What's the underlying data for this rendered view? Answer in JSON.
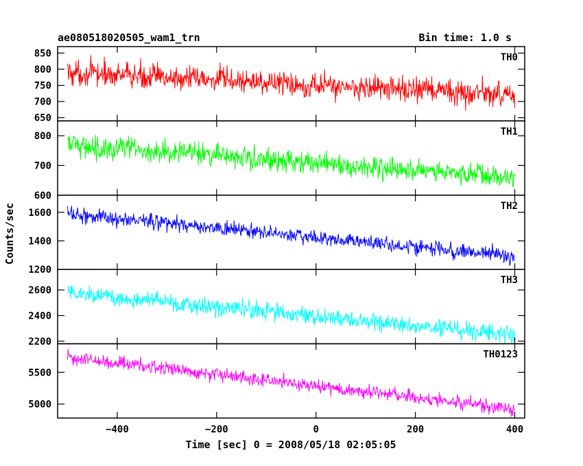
{
  "header": {
    "title": "ae080518020505_wam1_trn",
    "bin_time": "Bin time: 1.0 s"
  },
  "axes": {
    "xlabel": "Time [sec] 0 = 2008/05/18 02:05:05",
    "ylabel": "Counts/sec"
  },
  "chart_data": {
    "type": "line",
    "x": {
      "range": [
        -520,
        420
      ],
      "start": -500,
      "end": 400,
      "step": 1,
      "ticks": [
        -400,
        -200,
        0,
        200,
        400
      ],
      "tick_labels": [
        "−400",
        "−200",
        "0",
        "200",
        "400"
      ]
    },
    "panels": [
      {
        "name": "TH0",
        "color": "#ff0000",
        "ylim": [
          640,
          870
        ],
        "yticks": [
          650,
          700,
          750,
          800,
          850
        ],
        "ytick_labels": [
          "650",
          "700",
          "750",
          "800",
          "850"
        ],
        "trend": [
          790,
          720
        ],
        "noise": 28
      },
      {
        "name": "TH1",
        "color": "#00ff00",
        "ylim": [
          600,
          850
        ],
        "yticks": [
          600,
          700,
          800
        ],
        "ytick_labels": [
          "600",
          "700",
          "800"
        ],
        "trend": [
          770,
          660
        ],
        "noise": 27
      },
      {
        "name": "TH2",
        "color": "#0000ff",
        "ylim": [
          1200,
          1720
        ],
        "yticks": [
          1200,
          1400,
          1600
        ],
        "ytick_labels": [
          "1200",
          "1400",
          "1600"
        ],
        "trend": [
          1590,
          1290
        ],
        "noise": 38
      },
      {
        "name": "TH3",
        "color": "#00ffff",
        "ylim": [
          2180,
          2760
        ],
        "yticks": [
          2200,
          2400,
          2600
        ],
        "ytick_labels": [
          "2200",
          "2400",
          "2600"
        ],
        "trend": [
          2580,
          2240
        ],
        "noise": 48
      },
      {
        "name": "TH0123",
        "color": "#ff00ff",
        "ylim": [
          4780,
          5950
        ],
        "yticks": [
          5000,
          5500
        ],
        "ytick_labels": [
          "5000",
          "5500"
        ],
        "trend": [
          5740,
          4920
        ],
        "noise": 75
      }
    ]
  }
}
